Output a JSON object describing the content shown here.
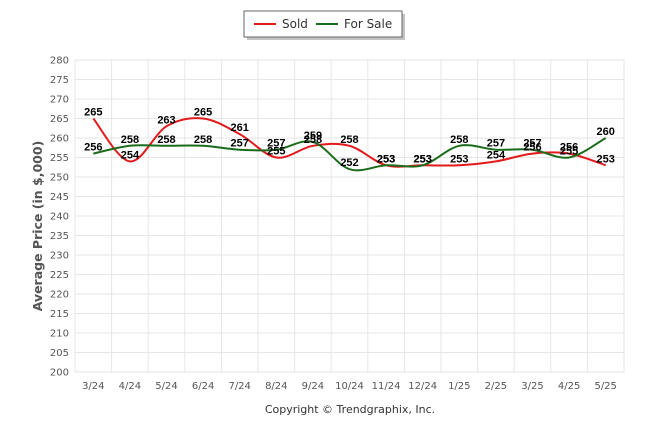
{
  "chart_data": {
    "type": "line",
    "categories": [
      "3/24",
      "4/24",
      "5/24",
      "6/24",
      "7/24",
      "8/24",
      "9/24",
      "10/24",
      "11/24",
      "12/24",
      "1/25",
      "2/25",
      "3/25",
      "4/25",
      "5/25"
    ],
    "series": [
      {
        "name": "Sold",
        "color": "#e31a1c",
        "values": [
          265,
          254,
          263,
          265,
          261,
          255,
          258,
          258,
          253,
          253,
          253,
          254,
          256,
          256,
          253
        ]
      },
      {
        "name": "For Sale",
        "color": "#1a6b1a",
        "values": [
          256,
          258,
          258,
          258,
          257,
          257,
          259,
          252,
          253,
          253,
          258,
          257,
          257,
          255,
          260
        ]
      }
    ],
    "ylabel": "Average Price (in $,000)",
    "ylim": [
      200,
      280
    ],
    "ytick_step": 5,
    "grid": true,
    "legend": "top-center"
  },
  "footer": "Copyright © Trendgraphix, Inc."
}
